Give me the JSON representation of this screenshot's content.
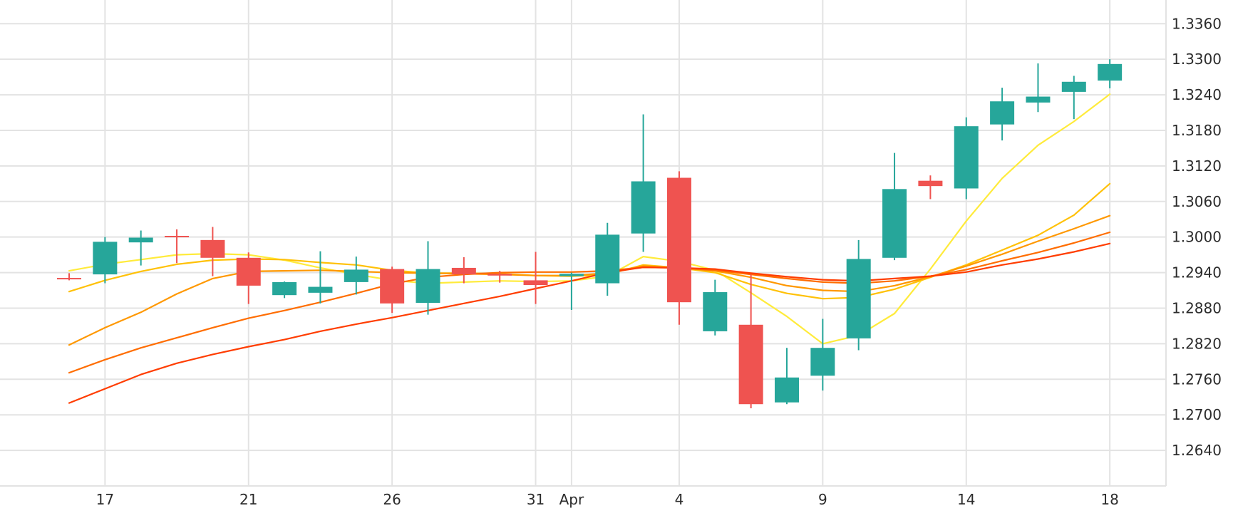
{
  "chart_data": {
    "type": "candlestick",
    "title": "",
    "xlabel": "",
    "ylabel": "",
    "ylim": [
      1.258,
      1.34
    ],
    "grid": true,
    "legend": "none",
    "x_tick_labels": [
      {
        "label": "17",
        "index": 1
      },
      {
        "label": "21",
        "index": 5
      },
      {
        "label": "26",
        "index": 9
      },
      {
        "label": "31",
        "index": 13
      },
      {
        "label": "Apr",
        "index": 14
      },
      {
        "label": "4",
        "index": 17
      },
      {
        "label": "9",
        "index": 21
      },
      {
        "label": "14",
        "index": 25
      },
      {
        "label": "18",
        "index": 29
      }
    ],
    "y_ticks": [
      "1.2640",
      "1.2700",
      "1.2760",
      "1.2820",
      "1.2880",
      "1.2940",
      "1.3000",
      "1.3060",
      "1.3120",
      "1.3180",
      "1.3240",
      "1.3300",
      "1.3360"
    ],
    "candles": [
      {
        "o": 1.2931,
        "h": 1.2939,
        "l": 1.2927,
        "c": 1.293
      },
      {
        "o": 1.2937,
        "h": 1.3,
        "l": 1.2922,
        "c": 1.2992
      },
      {
        "o": 1.2991,
        "h": 1.3011,
        "l": 1.2952,
        "c": 1.2999
      },
      {
        "o": 1.3002,
        "h": 1.3013,
        "l": 1.2956,
        "c": 1.3001
      },
      {
        "o": 1.2995,
        "h": 1.3017,
        "l": 1.2934,
        "c": 1.2965
      },
      {
        "o": 1.2965,
        "h": 1.2974,
        "l": 1.2887,
        "c": 1.2918
      },
      {
        "o": 1.2902,
        "h": 1.2925,
        "l": 1.2897,
        "c": 1.2924
      },
      {
        "o": 1.2906,
        "h": 1.2976,
        "l": 1.2888,
        "c": 1.2916
      },
      {
        "o": 1.2924,
        "h": 1.2967,
        "l": 1.2903,
        "c": 1.2945
      },
      {
        "o": 1.2946,
        "h": 1.295,
        "l": 1.2872,
        "c": 1.2888
      },
      {
        "o": 1.2889,
        "h": 1.2993,
        "l": 1.2869,
        "c": 1.2946
      },
      {
        "o": 1.2948,
        "h": 1.2966,
        "l": 1.2922,
        "c": 1.2937
      },
      {
        "o": 1.2938,
        "h": 1.2943,
        "l": 1.2923,
        "c": 1.2935
      },
      {
        "o": 1.2927,
        "h": 1.2975,
        "l": 1.2887,
        "c": 1.2919
      },
      {
        "o": 1.2934,
        "h": 1.294,
        "l": 1.2877,
        "c": 1.2938
      },
      {
        "o": 1.2922,
        "h": 1.3024,
        "l": 1.2901,
        "c": 1.3004
      },
      {
        "o": 1.3006,
        "h": 1.3207,
        "l": 1.2975,
        "c": 1.3094
      },
      {
        "o": 1.31,
        "h": 1.3111,
        "l": 1.2852,
        "c": 1.289
      },
      {
        "o": 1.2841,
        "h": 1.2928,
        "l": 1.2834,
        "c": 1.2907
      },
      {
        "o": 1.2852,
        "h": 1.2937,
        "l": 1.2711,
        "c": 1.2718
      },
      {
        "o": 1.2721,
        "h": 1.2813,
        "l": 1.2718,
        "c": 1.2763
      },
      {
        "o": 1.2766,
        "h": 1.2862,
        "l": 1.2741,
        "c": 1.2813
      },
      {
        "o": 1.2829,
        "h": 1.2995,
        "l": 1.2809,
        "c": 1.2963
      },
      {
        "o": 1.2965,
        "h": 1.3142,
        "l": 1.2961,
        "c": 1.3081
      },
      {
        "o": 1.3095,
        "h": 1.3104,
        "l": 1.3064,
        "c": 1.3086
      },
      {
        "o": 1.3082,
        "h": 1.3202,
        "l": 1.3064,
        "c": 1.3187
      },
      {
        "o": 1.319,
        "h": 1.3252,
        "l": 1.3163,
        "c": 1.3229
      },
      {
        "o": 1.3227,
        "h": 1.3293,
        "l": 1.3211,
        "c": 1.3237
      },
      {
        "o": 1.3245,
        "h": 1.3272,
        "l": 1.3199,
        "c": 1.3262
      },
      {
        "o": 1.3264,
        "h": 1.33,
        "l": 1.3251,
        "c": 1.3292
      }
    ],
    "series": [
      {
        "color": "#ffeb3b",
        "values": [
          1.2943,
          1.2954,
          1.2962,
          1.297,
          1.2972,
          1.297,
          1.2961,
          1.2948,
          1.2937,
          1.2927,
          1.2922,
          1.2924,
          1.2926,
          1.2925,
          1.2926,
          1.2934,
          1.2967,
          1.2959,
          1.2944,
          1.2906,
          1.2866,
          1.282,
          1.2834,
          1.2871,
          1.2946,
          1.3027,
          1.3099,
          1.3155,
          1.3195,
          1.3241
        ]
      },
      {
        "color": "#ffc107",
        "values": [
          1.2908,
          1.2927,
          1.2942,
          1.2954,
          1.2961,
          1.2963,
          1.2962,
          1.2957,
          1.2953,
          1.2944,
          1.2939,
          1.2939,
          1.2938,
          1.2935,
          1.2934,
          1.2937,
          1.2953,
          1.2948,
          1.294,
          1.292,
          1.2905,
          1.2896,
          1.2898,
          1.2912,
          1.2932,
          1.2953,
          1.2978,
          1.3003,
          1.3037,
          1.309
        ]
      },
      {
        "color": "#ff9800",
        "values": [
          1.2818,
          1.2847,
          1.2873,
          1.2904,
          1.293,
          1.2942,
          1.2943,
          1.2944,
          1.2942,
          1.294,
          1.2939,
          1.2938,
          1.2937,
          1.2935,
          1.2935,
          1.2939,
          1.2951,
          1.2948,
          1.2943,
          1.2932,
          1.2918,
          1.291,
          1.2908,
          1.2918,
          1.2933,
          1.2951,
          1.2971,
          1.2993,
          1.3014,
          1.3036
        ]
      },
      {
        "color": "#ff6d00",
        "values": [
          1.2771,
          1.2793,
          1.2813,
          1.283,
          1.2847,
          1.2863,
          1.2876,
          1.289,
          1.2905,
          1.2921,
          1.2932,
          1.2937,
          1.294,
          1.2941,
          1.2941,
          1.2943,
          1.2949,
          1.2948,
          1.2944,
          1.2937,
          1.293,
          1.2924,
          1.2922,
          1.2926,
          1.2934,
          1.2945,
          1.296,
          1.2974,
          1.299,
          1.3008
        ]
      },
      {
        "color": "#ff3d00",
        "values": [
          1.272,
          1.2744,
          1.2768,
          1.2787,
          1.2802,
          1.2815,
          1.2827,
          1.2841,
          1.2853,
          1.2864,
          1.2876,
          1.2888,
          1.29,
          1.2913,
          1.2926,
          1.294,
          1.2949,
          1.2948,
          1.2946,
          1.2939,
          1.2933,
          1.2928,
          1.2926,
          1.293,
          1.2934,
          1.2941,
          1.2953,
          1.2963,
          1.2975,
          1.2989
        ]
      }
    ],
    "up_color": "#26a69a",
    "down_color": "#ef5350"
  }
}
